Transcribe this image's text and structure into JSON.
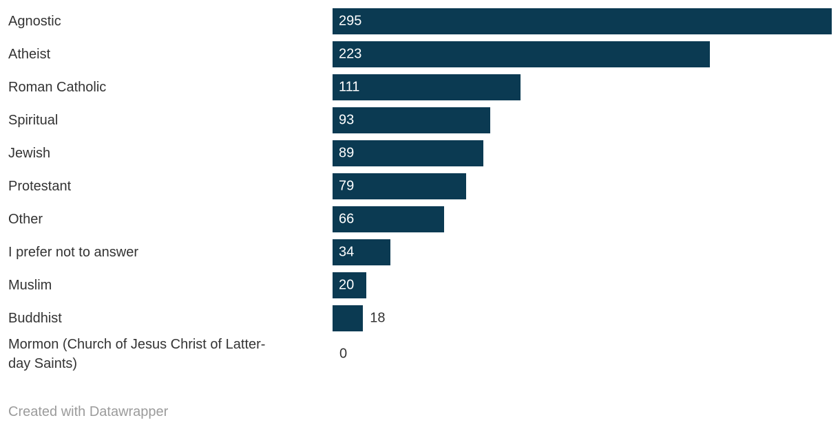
{
  "chart_data": {
    "type": "bar",
    "orientation": "horizontal",
    "categories": [
      "Agnostic",
      "Atheist",
      "Roman Catholic",
      "Spiritual",
      "Jewish",
      "Protestant",
      "Other",
      "I prefer not to answer",
      "Muslim",
      "Buddhist",
      "Mormon (Church of Jesus Christ of Latter-day Saints)"
    ],
    "values": [
      295,
      223,
      111,
      93,
      89,
      79,
      66,
      34,
      20,
      18,
      0
    ],
    "title": "",
    "xlabel": "",
    "ylabel": "",
    "xlim": [
      0,
      295
    ],
    "grid": false,
    "legend": false,
    "value_labels_shown": true,
    "bar_color": "#0b3a52",
    "value_label_inside_color": "#ffffff",
    "value_label_outside_color": "#333333",
    "category_label_color": "#333333"
  },
  "footer": {
    "credit": "Created with Datawrapper"
  }
}
